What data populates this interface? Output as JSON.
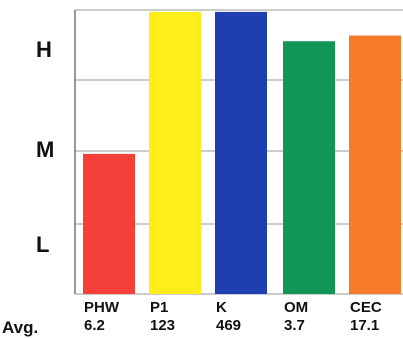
{
  "chart_data": {
    "type": "bar",
    "title": "",
    "xlabel": "",
    "ylabel": "",
    "y_levels": [
      "L",
      "M",
      "H"
    ],
    "categories": [
      "PHW",
      "P1",
      "K",
      "OM",
      "CEC"
    ],
    "averages": [
      "6.2",
      "123",
      "469",
      "3.7",
      "17.1"
    ],
    "avg_label": "Avg.",
    "values": [
      1.48,
      2.98,
      2.98,
      2.67,
      2.73
    ],
    "ylim": [
      0,
      3
    ],
    "colors": [
      "#f5403a",
      "#ffee1a",
      "#1f3fb0",
      "#129655",
      "#f57a2a"
    ],
    "grid": true
  }
}
